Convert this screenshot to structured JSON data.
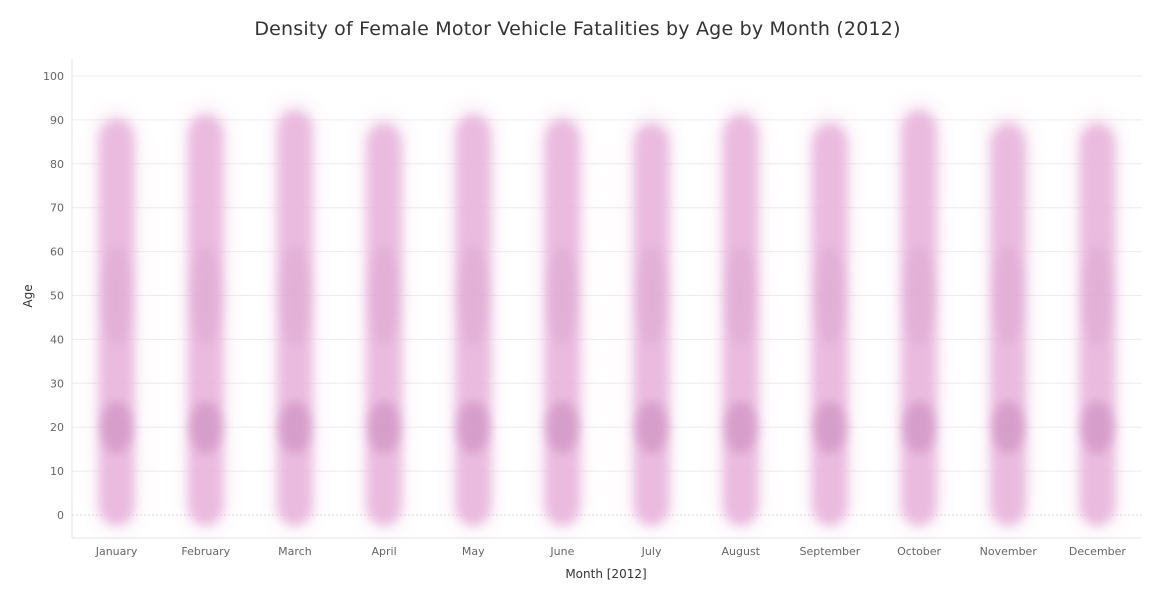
{
  "chart_data": {
    "type": "density",
    "title": "Density of Female Motor Vehicle Fatalities by Age by Month (2012)",
    "xlabel": "Month [2012]",
    "ylabel": "Age",
    "categories": [
      "January",
      "February",
      "March",
      "April",
      "May",
      "June",
      "July",
      "August",
      "September",
      "October",
      "November",
      "December"
    ],
    "y_ticks": [
      "0",
      "10",
      "20",
      "30",
      "40",
      "50",
      "60",
      "70",
      "80",
      "90",
      "100"
    ],
    "ylim": [
      -5,
      103
    ],
    "y_max_by_month": [
      90,
      91,
      92,
      89,
      91,
      90,
      89,
      91,
      89,
      92,
      89,
      89
    ],
    "density_peak_age": 20,
    "secondary_peak_age": 50,
    "grid": true,
    "colors": {
      "mark": "#e8b4dc",
      "peak": "#c98bbd",
      "grid": "#ececec",
      "baseline": "#d8d8d8"
    }
  }
}
